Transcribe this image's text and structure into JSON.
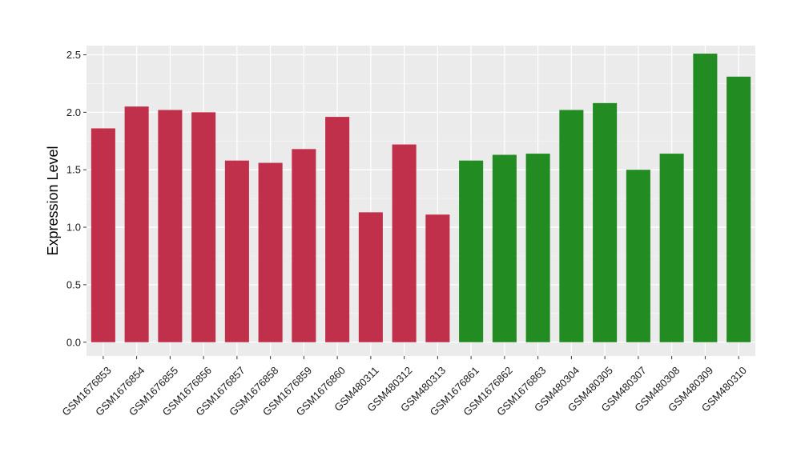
{
  "chart_data": {
    "type": "bar",
    "title": "",
    "xlabel": "",
    "ylabel": "Expression Level",
    "ylim": [
      -0.12,
      2.58
    ],
    "yticks": [
      0.0,
      0.5,
      1.0,
      1.5,
      2.0,
      2.5
    ],
    "ytick_labels": [
      "0.0",
      "0.5",
      "1.0",
      "1.5",
      "2.0",
      "2.5"
    ],
    "grid": true,
    "legend": "none",
    "panel_background": "#ebebeb",
    "categories": [
      "GSM1676853",
      "GSM1676854",
      "GSM1676855",
      "GSM1676856",
      "GSM1676857",
      "GSM1676858",
      "GSM1676859",
      "GSM1676860",
      "GSM480311",
      "GSM480312",
      "GSM480313",
      "GSM1676861",
      "GSM1676862",
      "GSM1676863",
      "GSM480304",
      "GSM480305",
      "GSM480307",
      "GSM480308",
      "GSM480309",
      "GSM480310"
    ],
    "values": [
      1.86,
      2.05,
      2.02,
      2.0,
      1.58,
      1.56,
      1.68,
      1.96,
      1.13,
      1.72,
      1.11,
      1.58,
      1.63,
      1.64,
      2.02,
      2.08,
      1.5,
      1.64,
      2.51,
      2.31
    ],
    "colors": [
      "#c0304a",
      "#c0304a",
      "#c0304a",
      "#c0304a",
      "#c0304a",
      "#c0304a",
      "#c0304a",
      "#c0304a",
      "#c0304a",
      "#c0304a",
      "#c0304a",
      "#228b22",
      "#228b22",
      "#228b22",
      "#228b22",
      "#228b22",
      "#228b22",
      "#228b22",
      "#228b22",
      "#228b22"
    ]
  }
}
